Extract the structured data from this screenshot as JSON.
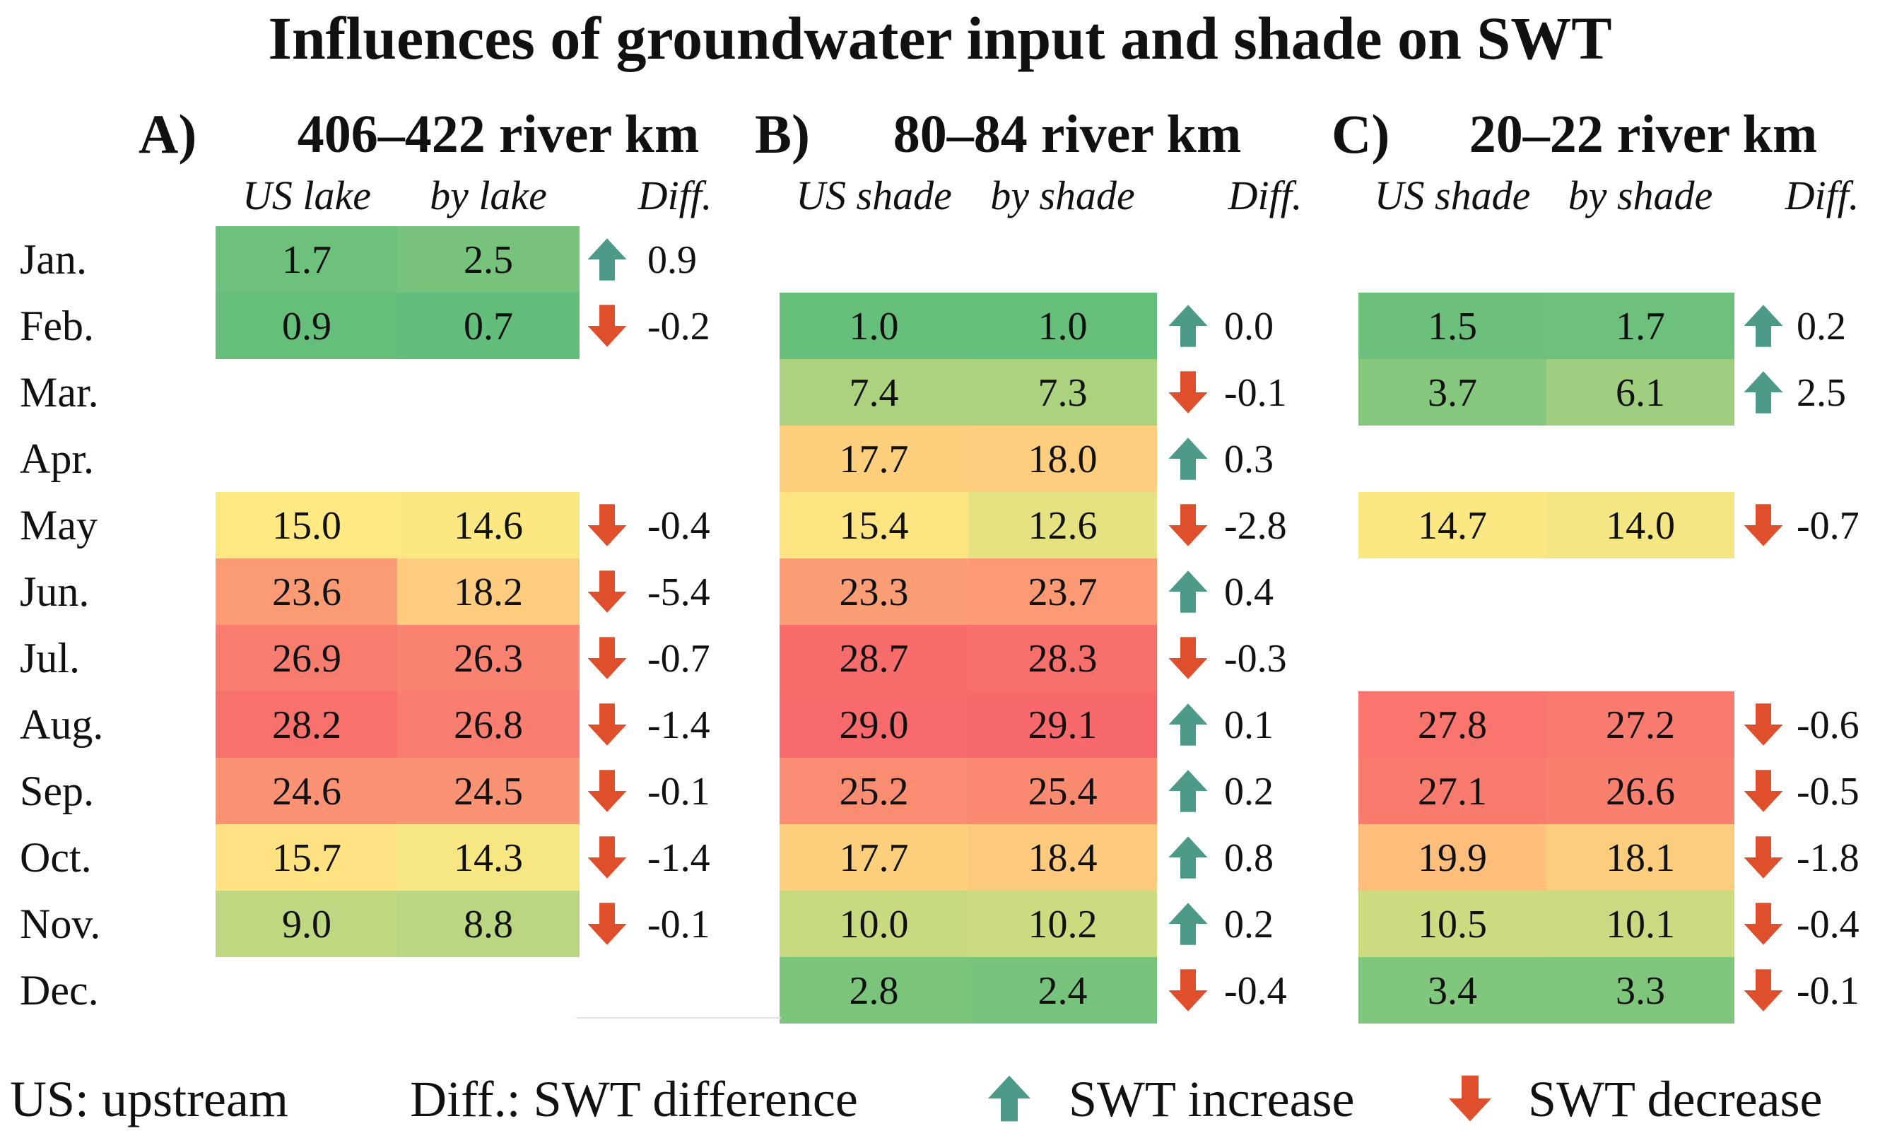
{
  "title": "Influences of groundwater input and shade on SWT",
  "colors": {
    "increase_arrow": "#4e9a88",
    "decrease_arrow": "#e04f2b",
    "scale_low": "#63be7b",
    "scale_mid": "#ffe983",
    "scale_high": "#f8696b"
  },
  "months": [
    "Jan.",
    "Feb.",
    "Mar.",
    "Apr.",
    "May",
    "Jun.",
    "Jul.",
    "Aug.",
    "Sep.",
    "Oct.",
    "Nov.",
    "Dec."
  ],
  "legend": {
    "us": "US: upstream",
    "diff": "Diff.: SWT difference",
    "increase_icon": "up-arrow-icon",
    "increase": "SWT increase",
    "decrease_icon": "down-arrow-icon",
    "decrease": "SWT decrease"
  },
  "chart_data": {
    "type": "table",
    "title": "Influences of groundwater input and shade on SWT",
    "color_scale": "green (low) - yellow - red (high)",
    "panels": [
      {
        "letter": "A)",
        "title": "406–422 river km",
        "columns": [
          "US lake",
          "by lake",
          "Diff."
        ],
        "rows": [
          {
            "month": "Jan.",
            "a": "1.7",
            "b": "2.5",
            "diff": "0.9",
            "dir": "up"
          },
          {
            "month": "Feb.",
            "a": "0.9",
            "b": "0.7",
            "diff": "-0.2",
            "dir": "down"
          },
          {
            "month": "Mar.",
            "a": null,
            "b": null,
            "diff": null,
            "dir": null
          },
          {
            "month": "Apr.",
            "a": null,
            "b": null,
            "diff": null,
            "dir": null
          },
          {
            "month": "May",
            "a": "15.0",
            "b": "14.6",
            "diff": "-0.4",
            "dir": "down"
          },
          {
            "month": "Jun.",
            "a": "23.6",
            "b": "18.2",
            "diff": "-5.4",
            "dir": "down"
          },
          {
            "month": "Jul.",
            "a": "26.9",
            "b": "26.3",
            "diff": "-0.7",
            "dir": "down"
          },
          {
            "month": "Aug.",
            "a": "28.2",
            "b": "26.8",
            "diff": "-1.4",
            "dir": "down"
          },
          {
            "month": "Sep.",
            "a": "24.6",
            "b": "24.5",
            "diff": "-0.1",
            "dir": "down"
          },
          {
            "month": "Oct.",
            "a": "15.7",
            "b": "14.3",
            "diff": "-1.4",
            "dir": "down"
          },
          {
            "month": "Nov.",
            "a": "9.0",
            "b": "8.8",
            "diff": "-0.1",
            "dir": "down"
          },
          {
            "month": "Dec.",
            "a": null,
            "b": null,
            "diff": null,
            "dir": null
          }
        ]
      },
      {
        "letter": "B)",
        "title": "80–84 river km",
        "columns": [
          "US shade",
          "by shade",
          "Diff."
        ],
        "rows": [
          {
            "month": "Jan.",
            "a": null,
            "b": null,
            "diff": null,
            "dir": null
          },
          {
            "month": "Feb.",
            "a": "1.0",
            "b": "1.0",
            "diff": "0.0",
            "dir": "up"
          },
          {
            "month": "Mar.",
            "a": "7.4",
            "b": "7.3",
            "diff": "-0.1",
            "dir": "down"
          },
          {
            "month": "Apr.",
            "a": "17.7",
            "b": "18.0",
            "diff": "0.3",
            "dir": "up"
          },
          {
            "month": "May",
            "a": "15.4",
            "b": "12.6",
            "diff": "-2.8",
            "dir": "down"
          },
          {
            "month": "Jun.",
            "a": "23.3",
            "b": "23.7",
            "diff": "0.4",
            "dir": "up"
          },
          {
            "month": "Jul.",
            "a": "28.7",
            "b": "28.3",
            "diff": "-0.3",
            "dir": "down"
          },
          {
            "month": "Aug.",
            "a": "29.0",
            "b": "29.1",
            "diff": "0.1",
            "dir": "up"
          },
          {
            "month": "Sep.",
            "a": "25.2",
            "b": "25.4",
            "diff": "0.2",
            "dir": "up"
          },
          {
            "month": "Oct.",
            "a": "17.7",
            "b": "18.4",
            "diff": "0.8",
            "dir": "up"
          },
          {
            "month": "Nov.",
            "a": "10.0",
            "b": "10.2",
            "diff": "0.2",
            "dir": "up"
          },
          {
            "month": "Dec.",
            "a": "2.8",
            "b": "2.4",
            "diff": "-0.4",
            "dir": "down"
          }
        ]
      },
      {
        "letter": "C)",
        "title": "20–22 river km",
        "columns": [
          "US shade",
          "by shade",
          "Diff."
        ],
        "rows": [
          {
            "month": "Jan.",
            "a": null,
            "b": null,
            "diff": null,
            "dir": null
          },
          {
            "month": "Feb.",
            "a": "1.5",
            "b": "1.7",
            "diff": "0.2",
            "dir": "up"
          },
          {
            "month": "Mar.",
            "a": "3.7",
            "b": "6.1",
            "diff": "2.5",
            "dir": "up"
          },
          {
            "month": "Apr.",
            "a": null,
            "b": null,
            "diff": null,
            "dir": null
          },
          {
            "month": "May",
            "a": "14.7",
            "b": "14.0",
            "diff": "-0.7",
            "dir": "down"
          },
          {
            "month": "Jun.",
            "a": null,
            "b": null,
            "diff": null,
            "dir": null
          },
          {
            "month": "Jul.",
            "a": null,
            "b": null,
            "diff": null,
            "dir": null
          },
          {
            "month": "Aug.",
            "a": "27.8",
            "b": "27.2",
            "diff": "-0.6",
            "dir": "down"
          },
          {
            "month": "Sep.",
            "a": "27.1",
            "b": "26.6",
            "diff": "-0.5",
            "dir": "down"
          },
          {
            "month": "Oct.",
            "a": "19.9",
            "b": "18.1",
            "diff": "-1.8",
            "dir": "down"
          },
          {
            "month": "Nov.",
            "a": "10.5",
            "b": "10.1",
            "diff": "-0.4",
            "dir": "down"
          },
          {
            "month": "Dec.",
            "a": "3.4",
            "b": "3.3",
            "diff": "-0.1",
            "dir": "down"
          }
        ]
      }
    ]
  }
}
